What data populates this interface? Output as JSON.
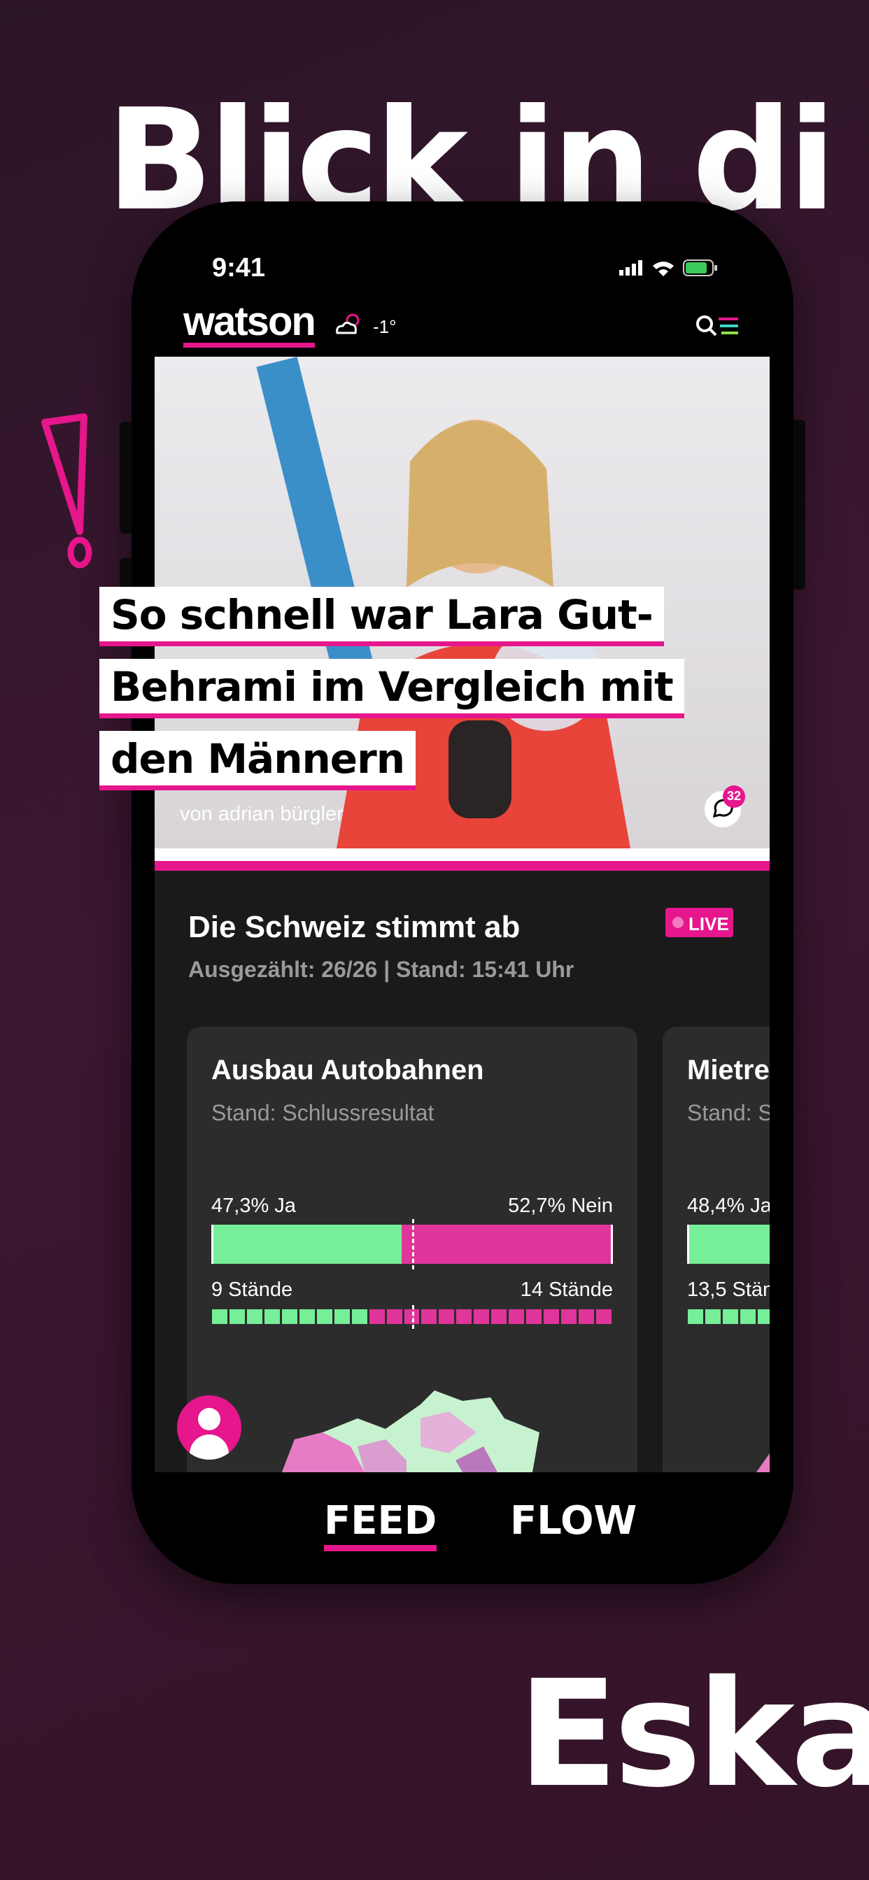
{
  "banner": {
    "top_text": "Blick in di",
    "bottom_text": "Eska"
  },
  "status_bar": {
    "time": "9:41"
  },
  "header": {
    "logo": "watson",
    "weather": "-1°"
  },
  "hero": {
    "headline_lines": [
      "So schnell war Lara Gut-",
      "Behrami im Vergleich mit",
      "den Männern"
    ],
    "author": "von adrian bürgler",
    "comment_count": "32"
  },
  "vote": {
    "title": "Die Schweiz stimmt ab",
    "badge": "LIVE",
    "subtitle": "Ausgezählt: 26/26 | Stand: 15:41 Uhr",
    "cards": [
      {
        "title": "Ausbau Autobahnen",
        "status": "Stand: Schlussresultat",
        "yes": "47,3% Ja",
        "no": "52,7% Nein",
        "yes_cantons": "9 Stände",
        "no_cantons": "14 Stände"
      },
      {
        "title": "Mietre",
        "status": "Stand: S",
        "yes": "48,4% Ja",
        "yes_cantons": "13,5 Stän"
      }
    ]
  },
  "tabs": [
    "FEED",
    "FLOW"
  ]
}
